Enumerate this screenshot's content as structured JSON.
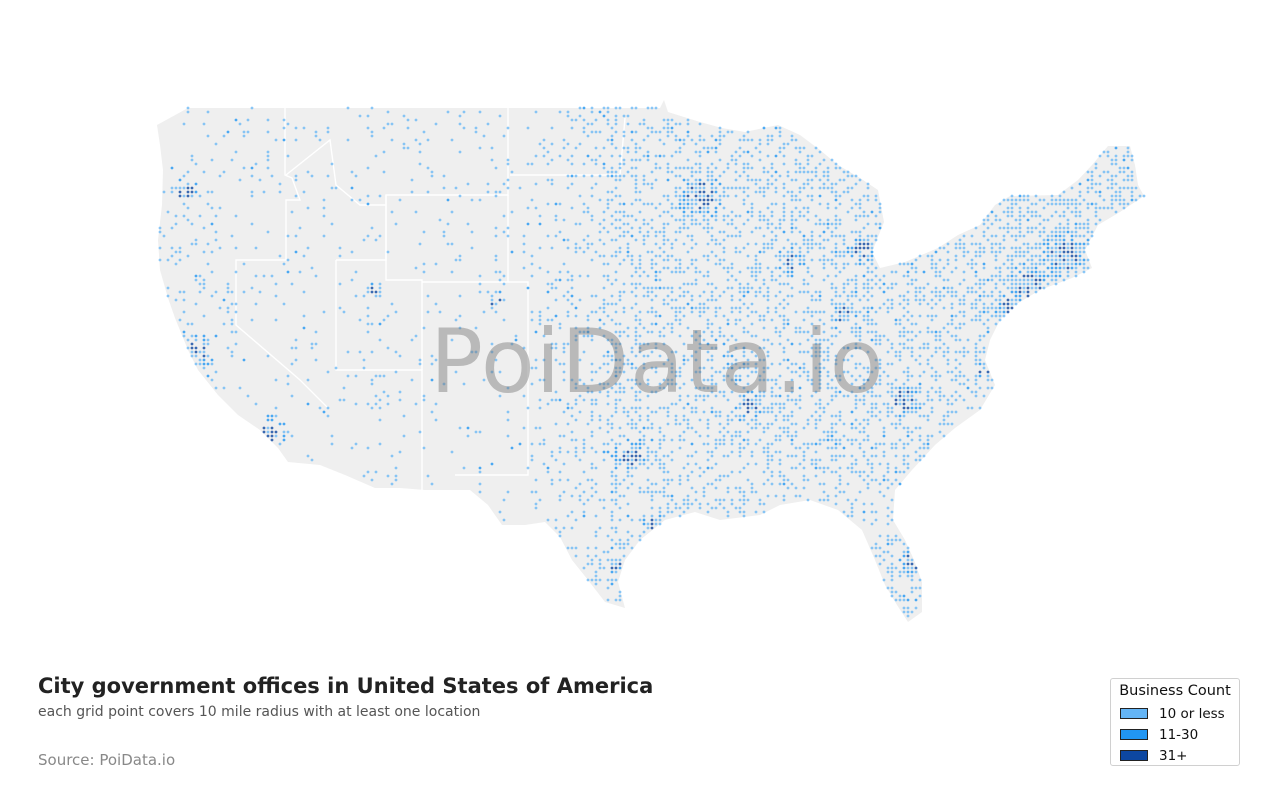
{
  "title": "City government offices in United States of America",
  "subtitle": "each grid point covers 10 mile radius with at least one location",
  "source": "Source: PoiData.io",
  "watermark": "PoiData.io",
  "legend": {
    "title": "Business Count",
    "items": [
      {
        "label": "10 or less",
        "color": "#64b5f6"
      },
      {
        "label": "11-30",
        "color": "#2196f3"
      },
      {
        "label": "31+",
        "color": "#0d47a1"
      }
    ]
  },
  "colors": {
    "land": "#efefef",
    "state_border": "#ffffff",
    "low": "#64b5f6",
    "mid": "#2196f3",
    "high": "#0d47a1"
  }
}
